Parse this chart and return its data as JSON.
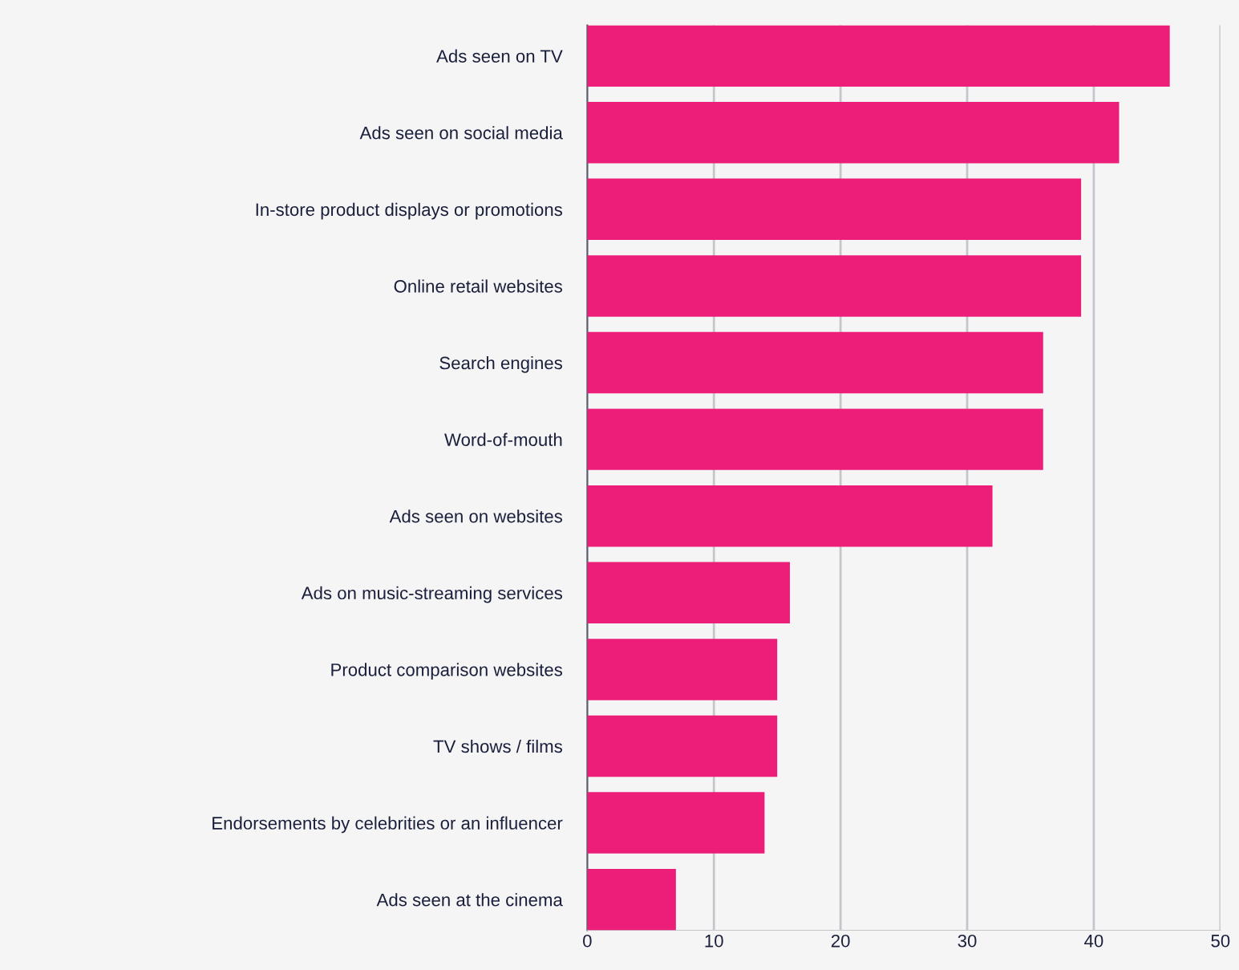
{
  "chart_data": {
    "type": "bar",
    "orientation": "horizontal",
    "categories": [
      "Ads seen on TV",
      "Ads seen on social media",
      "In-store product displays or promotions",
      "Online retail websites",
      "Search engines",
      "Word-of-mouth",
      "Ads seen on websites",
      "Ads on music-streaming services",
      "Product comparison websites",
      "TV shows / films",
      "Endorsements by celebrities or an influencer",
      "Ads seen at the cinema"
    ],
    "values": [
      46,
      42,
      39,
      39,
      36,
      36,
      32,
      16,
      15,
      15,
      14,
      7
    ],
    "color": "#ed1e79",
    "xlim": [
      0,
      50
    ],
    "xticks": [
      0,
      10,
      20,
      30,
      40,
      50
    ],
    "grid": "x"
  }
}
